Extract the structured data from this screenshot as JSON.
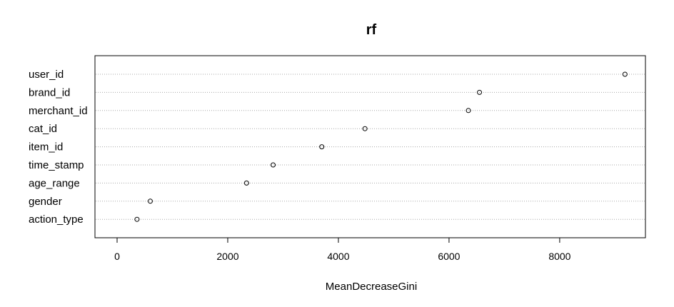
{
  "chart_data": {
    "type": "scatter",
    "title": "rf",
    "xlabel": "MeanDecreaseGini",
    "ylabel": "",
    "xlim": [
      -400,
      9550
    ],
    "xticks": [
      0,
      2000,
      4000,
      6000,
      8000
    ],
    "xtick_labels": [
      "0",
      "2000",
      "4000",
      "6000",
      "8000"
    ],
    "grid": "horizontal dotted",
    "categories": [
      "user_id",
      "brand_id",
      "merchant_id",
      "cat_id",
      "item_id",
      "time_stamp",
      "age_range",
      "gender",
      "action_type"
    ],
    "values": [
      9180,
      6550,
      6350,
      4480,
      3700,
      2820,
      2340,
      600,
      360
    ]
  }
}
